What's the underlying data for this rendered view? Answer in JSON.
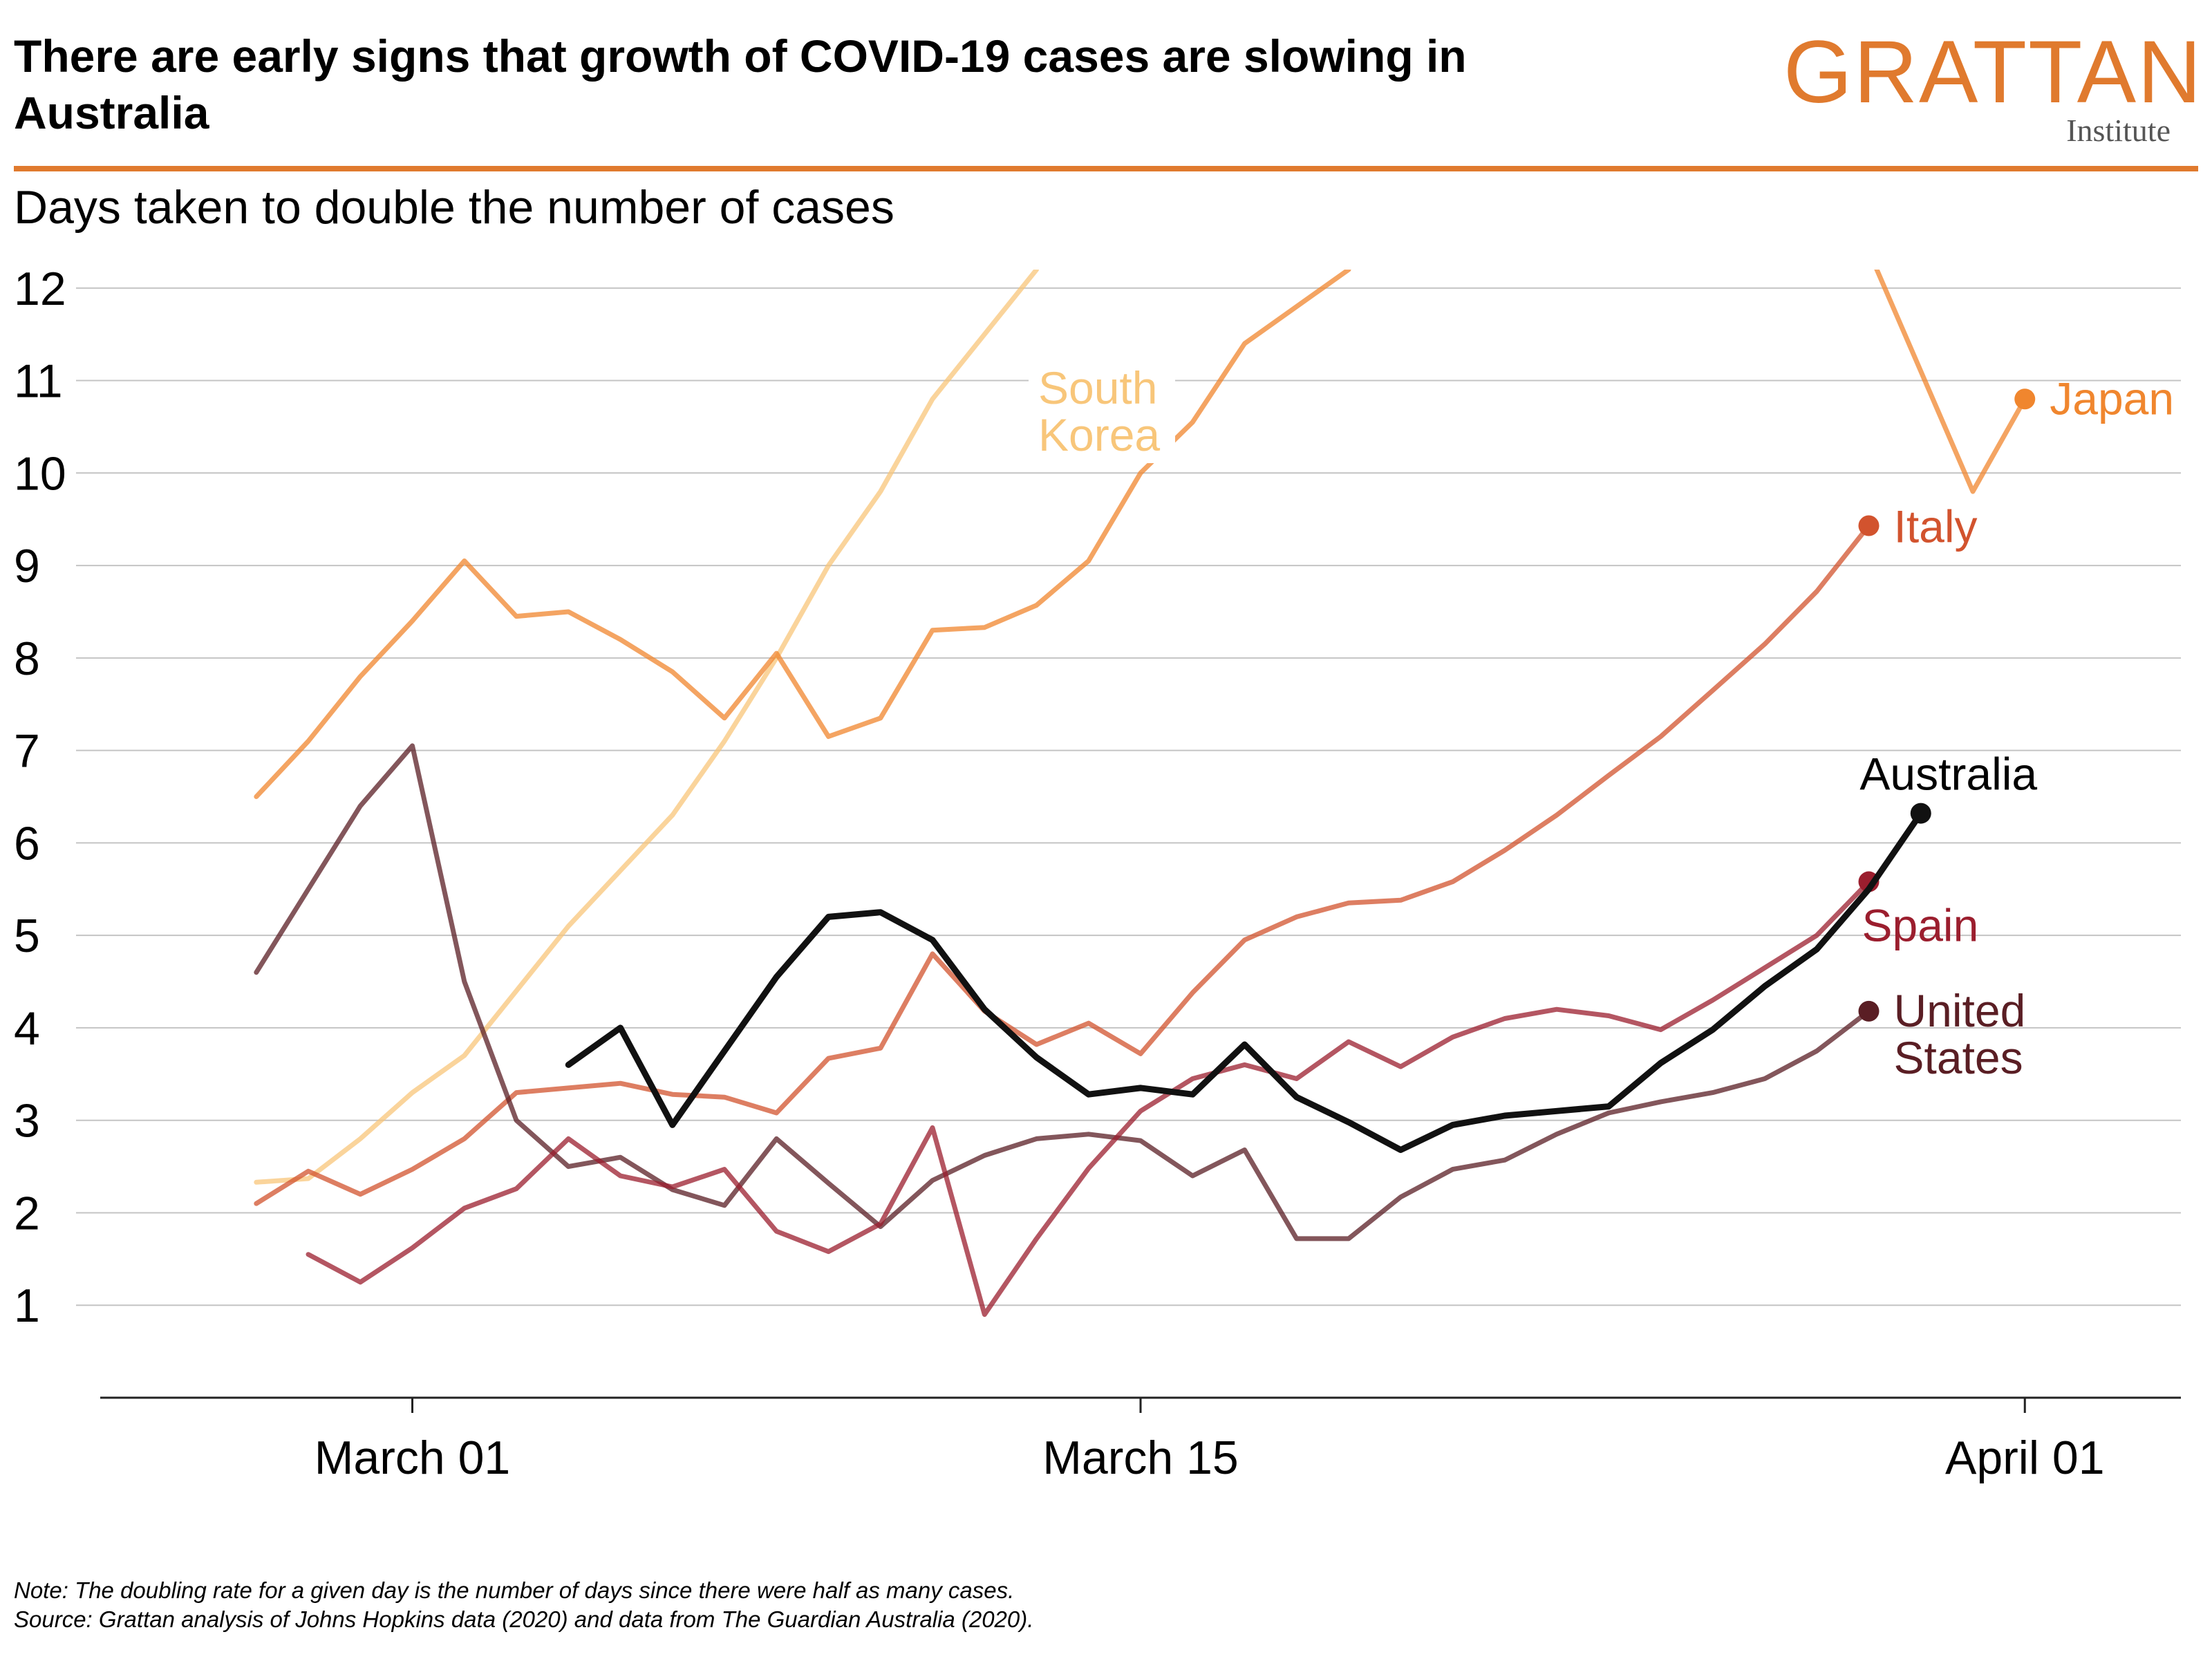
{
  "header": {
    "title": "There are early signs that growth of COVID-19 cases are slowing in Australia",
    "subtitle": "Days taken to double the number of cases",
    "brand": "GRATTAN",
    "brand_sub": "Institute",
    "accent_color": "#E07A2E"
  },
  "chart_data": {
    "type": "line",
    "ylabel": "",
    "xlabel": "",
    "ylim": [
      0,
      12.2
    ],
    "yticks": [
      1,
      2,
      3,
      4,
      5,
      6,
      7,
      8,
      9,
      10,
      11,
      12
    ],
    "xlim": [
      "2020-02-24",
      "2020-04-04"
    ],
    "xticks": [
      {
        "date": "2020-03-01",
        "label": "March 01"
      },
      {
        "date": "2020-03-15",
        "label": "March 15"
      },
      {
        "date": "2020-04-01",
        "label": "April 01"
      }
    ],
    "grid": true,
    "series": [
      {
        "name": "South Korea",
        "color": "#F8C67A",
        "start": "2020-02-27",
        "values": [
          2.33,
          2.37,
          2.8,
          3.3,
          3.7,
          4.4,
          5.1,
          5.7,
          6.3,
          7.1,
          8.0,
          9.0,
          9.8,
          10.8,
          11.5,
          12.2
        ],
        "endpoint": false
      },
      {
        "name": "Japan",
        "color": "#F0862E",
        "start": "2020-02-27",
        "values": [
          6.5,
          7.1,
          7.8,
          8.4,
          9.05,
          8.45,
          8.5,
          8.2,
          7.85,
          7.35,
          8.05,
          7.15,
          7.35,
          8.3,
          8.33,
          8.57,
          9.05,
          10.0,
          10.55,
          11.4,
          11.8,
          12.2,
          null,
          null,
          null,
          null,
          null,
          null,
          null,
          null,
          null,
          12.4,
          11.1,
          9.8,
          10.8
        ],
        "endpoint": true
      },
      {
        "name": "Italy",
        "color": "#D2532E",
        "start": "2020-02-27",
        "values": [
          2.1,
          2.45,
          2.2,
          2.47,
          2.8,
          3.3,
          3.35,
          3.4,
          3.28,
          3.25,
          3.08,
          3.67,
          3.78,
          4.8,
          4.18,
          3.82,
          4.05,
          3.72,
          4.38,
          4.95,
          5.2,
          5.35,
          5.38,
          5.58,
          5.92,
          6.3,
          6.73,
          7.15,
          7.65,
          8.15,
          8.72,
          9.43
        ],
        "endpoint": true
      },
      {
        "name": "Australia",
        "color": "#111111",
        "start": "2020-03-04",
        "values": [
          3.6,
          4.0,
          2.95,
          3.75,
          4.55,
          5.2,
          5.25,
          4.95,
          4.2,
          3.68,
          3.28,
          3.35,
          3.28,
          3.82,
          3.25,
          2.98,
          2.68,
          2.95,
          3.05,
          3.1,
          3.15,
          3.62,
          3.98,
          4.45,
          4.85,
          5.5,
          6.32
        ],
        "endpoint": true
      },
      {
        "name": "Spain",
        "color": "#9B1E2E",
        "start": "2020-02-28",
        "values": [
          1.55,
          1.25,
          1.62,
          2.05,
          2.26,
          2.8,
          2.4,
          2.28,
          2.47,
          1.8,
          1.58,
          1.88,
          2.92,
          0.9,
          1.72,
          2.48,
          3.1,
          3.45,
          3.6,
          3.45,
          3.85,
          3.58,
          3.9,
          4.1,
          4.2,
          4.13,
          3.98,
          4.3,
          4.65,
          5.0,
          5.58
        ],
        "endpoint": true
      },
      {
        "name": "United States",
        "color": "#5A1E24",
        "start": "2020-02-27",
        "values": [
          4.6,
          5.5,
          6.4,
          7.05,
          4.5,
          3.0,
          2.5,
          2.6,
          2.25,
          2.08,
          2.8,
          2.32,
          1.85,
          2.35,
          2.62,
          2.8,
          2.85,
          2.78,
          2.4,
          2.68,
          1.72,
          1.72,
          2.17,
          2.47,
          2.57,
          2.85,
          3.08,
          3.2,
          3.3,
          3.45,
          3.75,
          4.18
        ],
        "endpoint": true
      }
    ],
    "annotations": {
      "south_korea": [
        "South",
        "Korea"
      ],
      "japan": "Japan",
      "italy": "Italy",
      "australia": "Australia",
      "spain": "Spain",
      "united_states": [
        "United",
        "States"
      ]
    }
  },
  "footer": {
    "note": "Note: The doubling rate for a given day is the number of days since there were half as many cases.",
    "source": "Source: Grattan analysis of Johns Hopkins data (2020) and data from The Guardian Australia (2020)."
  }
}
